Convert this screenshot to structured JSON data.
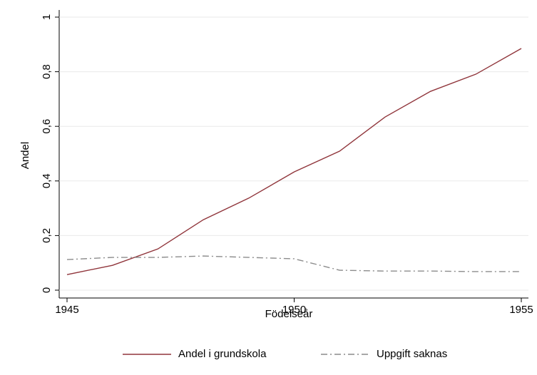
{
  "chart_data": {
    "type": "line",
    "x": [
      1945,
      1946,
      1947,
      1948,
      1949,
      1950,
      1951,
      1952,
      1953,
      1954,
      1955
    ],
    "series": [
      {
        "name": "Andel i grundskola",
        "color": "#90353b",
        "dash": "solid",
        "values": [
          0.057,
          0.091,
          0.151,
          0.258,
          0.337,
          0.433,
          0.509,
          0.634,
          0.728,
          0.791,
          0.885
        ]
      },
      {
        "name": "Uppgift saknas",
        "color": "#8c8c8c",
        "dash": "dashdot",
        "values": [
          0.112,
          0.12,
          0.12,
          0.125,
          0.12,
          0.115,
          0.073,
          0.07,
          0.07,
          0.068,
          0.068
        ]
      }
    ],
    "xlabel": "Födelseår",
    "ylabel": "Andel",
    "xlim": [
      1945,
      1955
    ],
    "xticks": [
      1945,
      1950,
      1955
    ],
    "ylim": [
      0,
      1
    ],
    "yticks": [
      0,
      {
        "value": 0.2,
        "label": "0,2"
      },
      {
        "value": 0.4,
        "label": "0,4"
      },
      {
        "value": 0.6,
        "label": "0,6"
      },
      {
        "value": 0.8,
        "label": "0,8"
      },
      1
    ],
    "grid": true,
    "legend": "bottom"
  }
}
